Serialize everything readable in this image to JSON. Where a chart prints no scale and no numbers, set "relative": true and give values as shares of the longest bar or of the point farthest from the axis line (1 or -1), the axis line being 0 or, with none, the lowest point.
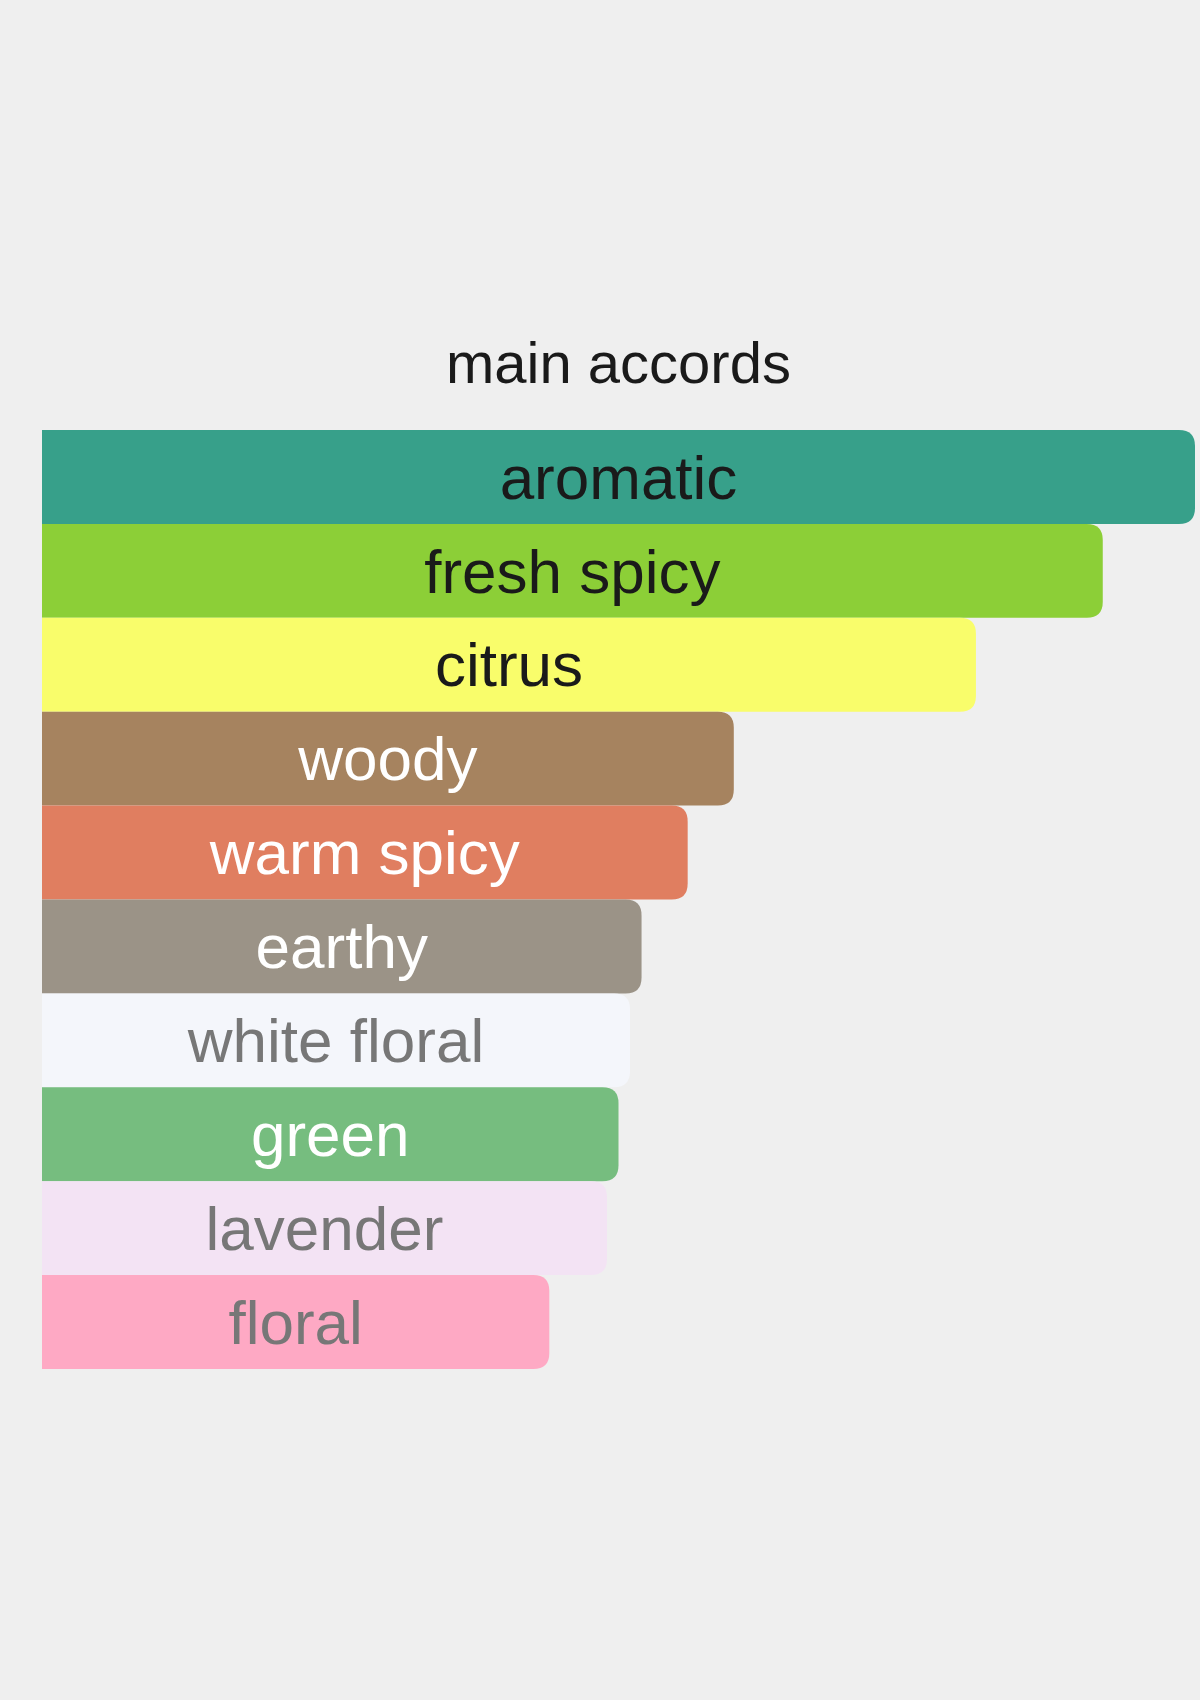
{
  "chart_data": {
    "type": "bar",
    "orientation": "horizontal",
    "relative": true,
    "title": "main accords",
    "categories": [
      "aromatic",
      "fresh spicy",
      "citrus",
      "woody",
      "warm spicy",
      "earthy",
      "white floral",
      "green",
      "lavender",
      "floral"
    ],
    "values": [
      1,
      0.92,
      0.81,
      0.6,
      0.56,
      0.52,
      0.51,
      0.5,
      0.49,
      0.44
    ],
    "colors": [
      "#37a08a",
      "#8ccf37",
      "#f9fd6b",
      "#a6835f",
      "#e07e60",
      "#9b9387",
      "#f4f6fb",
      "#76bd7f",
      "#f3e3f4",
      "#fea9c4"
    ]
  }
}
